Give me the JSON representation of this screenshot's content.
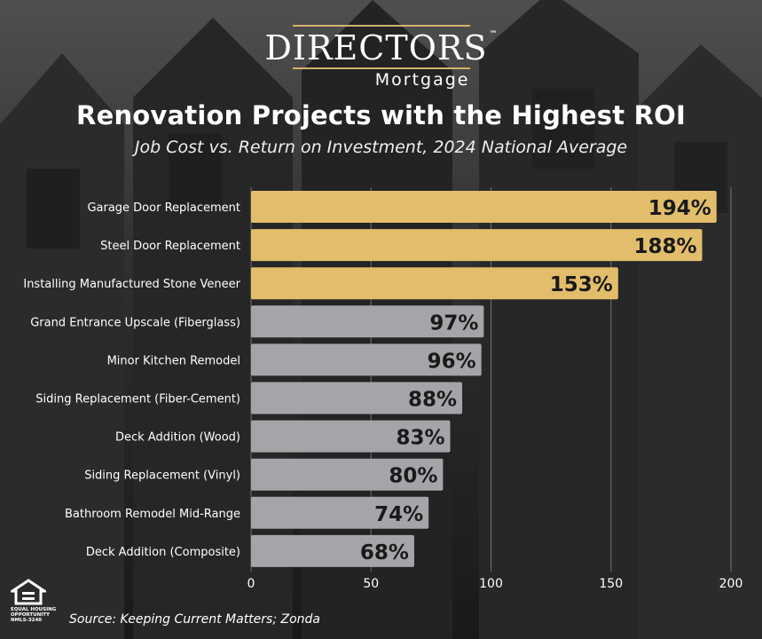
{
  "brand": {
    "name": "DIRECTORS",
    "mark": "™",
    "sub": "Mortgage"
  },
  "chart_data": {
    "type": "bar",
    "orientation": "horizontal",
    "title": "Renovation Projects with the Highest ROI",
    "subtitle": "Job Cost vs. Return on Investment, 2024 National Average",
    "categories": [
      "Garage Door Replacement",
      "Steel Door Replacement",
      "Installing Manufactured Stone Veneer",
      "Grand Entrance Upscale (Fiberglass)",
      "Minor Kitchen Remodel",
      "Siding Replacement (Fiber-Cement)",
      "Deck Addition (Wood)",
      "Siding Replacement (Vinyl)",
      "Bathroom Remodel Mid-Range",
      "Deck Addition (Composite)"
    ],
    "values": [
      194,
      188,
      153,
      97,
      96,
      88,
      83,
      80,
      74,
      68
    ],
    "data_labels": [
      "194%",
      "188%",
      "153%",
      "97%",
      "96%",
      "88%",
      "83%",
      "80%",
      "74%",
      "68%"
    ],
    "highlight_count": 3,
    "xlim": [
      0,
      200
    ],
    "xticks": [
      0,
      50,
      100,
      150,
      200
    ],
    "grid": true,
    "colors": {
      "highlight": "#e2bd6b",
      "default": "#a3a5a8",
      "label": "#1a1a1a"
    }
  },
  "footer": {
    "source": "Source: Keeping Current Matters; Zonda",
    "eho_text": "EQUAL HOUSING OPPORTUNITY",
    "nmls": "NMLS-3240"
  }
}
